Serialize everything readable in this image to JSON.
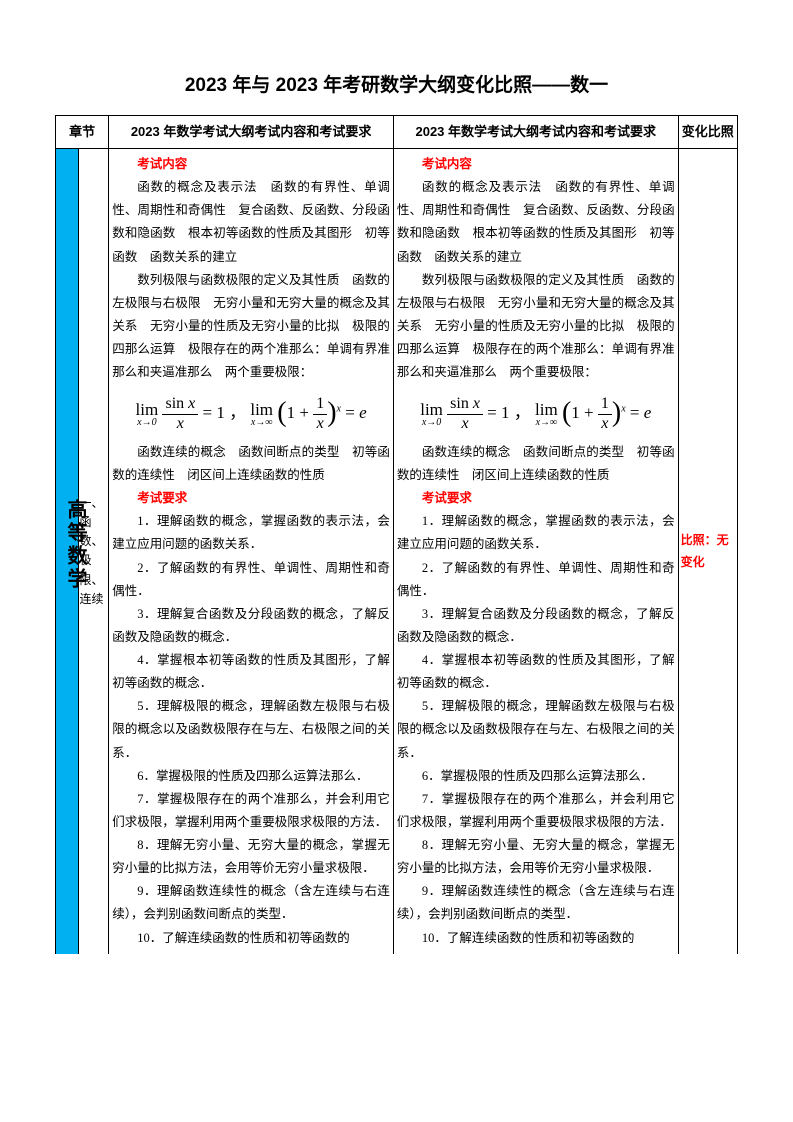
{
  "title": "2023 年与 2023 年考研数学大纲变化比照——数一",
  "headers": {
    "chapter": "章节",
    "col2": "2023 年数学考试大纲考试内容和考试要求",
    "col3": "2023 年数学考试大纲考试内容和考试要求",
    "col4": "变化比照"
  },
  "subject": "高等数学",
  "chapter_label": "一、函数、极限、连续",
  "compare_text": "比照：无变化",
  "section_content_title": "考试内容",
  "section_req_title": "考试要求",
  "content_p1": "函数的概念及表示法　函数的有界性、单调性、周期性和奇偶性　复合函数、反函数、分段函数和隐函数　根本初等函数的性质及其图形　初等函数　函数关系的建立",
  "content_p2": "数列极限与函数极限的定义及其性质　函数的左极限与右极限　无穷小量和无穷大量的概念及其关系　无穷小量的性质及无穷小量的比拟　极限的四那么运算　极限存在的两个准那么：单调有界准那么和夹逼准那么　两个重要极限：",
  "content_p3": "函数连续的概念　函数间断点的类型　初等函数的连续性　闭区间上连续函数的性质",
  "req_1": "1．理解函数的概念，掌握函数的表示法，会建立应用问题的函数关系．",
  "req_2": "2．了解函数的有界性、单调性、周期性和奇偶性．",
  "req_3": "3．理解复合函数及分段函数的概念，了解反函数及隐函数的概念．",
  "req_4": "4．掌握根本初等函数的性质及其图形，了解初等函数的概念．",
  "req_5": "5．理解极限的概念，理解函数左极限与右极限的概念以及函数极限存在与左、右极限之间的关系．",
  "req_6": "6．掌握极限的性质及四那么运算法那么．",
  "req_7": "7．掌握极限存在的两个准那么，并会利用它们求极限，掌握利用两个重要极限求极限的方法．",
  "req_8": "8．理解无穷小量、无穷大量的概念，掌握无穷小量的比拟方法，会用等价无穷小量求极限．",
  "req_9": "9．理解函数连续性的概念（含左连续与右连续），会判别函数间断点的类型．",
  "req_10": "10．了解连续函数的性质和初等函数的",
  "colors": {
    "subject_bg": "#00b0f0",
    "red": "#ff0000",
    "border": "#000000",
    "bg": "#ffffff"
  }
}
